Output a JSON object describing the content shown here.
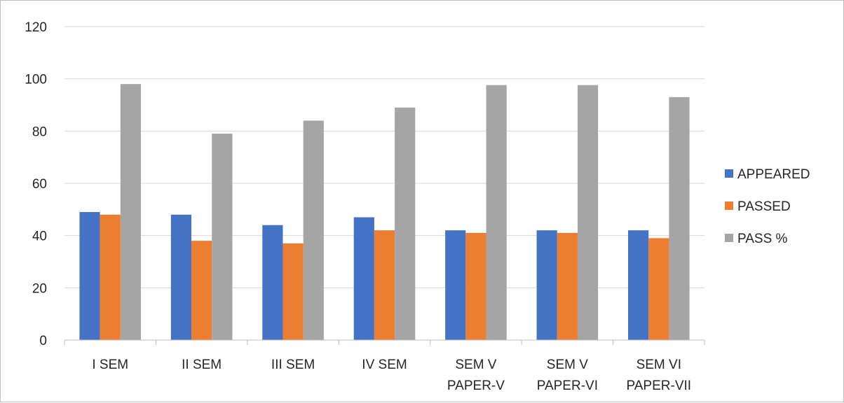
{
  "chart_data": {
    "type": "bar",
    "title": "",
    "xlabel": "",
    "ylabel": "",
    "categories": [
      [
        "I SEM"
      ],
      [
        "II SEM"
      ],
      [
        "III SEM"
      ],
      [
        "IV SEM"
      ],
      [
        "SEM V",
        "PAPER-V"
      ],
      [
        "SEM V",
        "PAPER-VI"
      ],
      [
        "SEM VI",
        "PAPER-VII"
      ]
    ],
    "series": [
      {
        "name": "APPEARED",
        "color": "#4472c4",
        "values": [
          49,
          48,
          44,
          47,
          42,
          42,
          42
        ]
      },
      {
        "name": "PASSED",
        "color": "#ed7d31",
        "values": [
          48,
          38,
          37,
          42,
          41,
          41,
          39
        ]
      },
      {
        "name": "PASS %",
        "color": "#a5a5a5",
        "values": [
          98,
          79,
          84,
          89,
          97.6,
          97.6,
          93
        ]
      }
    ],
    "ylim": [
      0,
      120
    ],
    "yticks": [
      0,
      20,
      40,
      60,
      80,
      100,
      120
    ],
    "grid": true,
    "legend_position": "right"
  }
}
